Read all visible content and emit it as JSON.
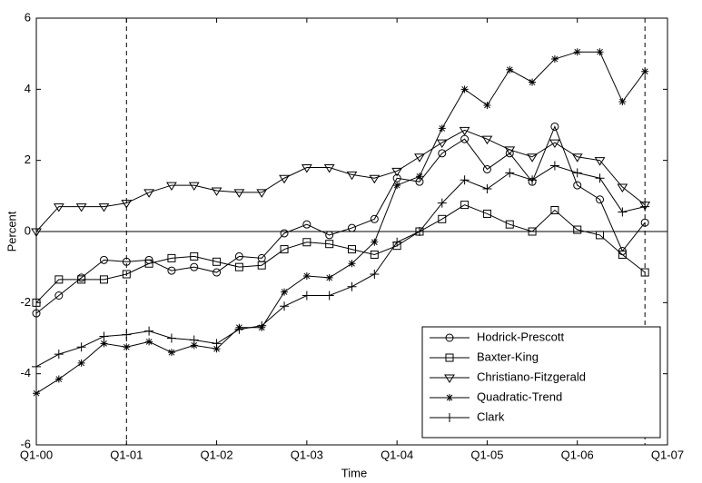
{
  "chart_data": {
    "type": "line",
    "x_label": "Time",
    "y_label": "Percent",
    "x": [
      0,
      1,
      2,
      3,
      4,
      5,
      6,
      7,
      8,
      9,
      10,
      11,
      12,
      13,
      14,
      15,
      16,
      17,
      18,
      19,
      20,
      21,
      22,
      23,
      24,
      25,
      26,
      27
    ],
    "xlim": [
      0,
      28
    ],
    "xticks": [
      {
        "value": 0,
        "label": "Q1-00"
      },
      {
        "value": 4,
        "label": "Q1-01"
      },
      {
        "value": 8,
        "label": "Q1-02"
      },
      {
        "value": 12,
        "label": "Q1-03"
      },
      {
        "value": 16,
        "label": "Q1-04"
      },
      {
        "value": 20,
        "label": "Q1-05"
      },
      {
        "value": 24,
        "label": "Q1-06"
      },
      {
        "value": 28,
        "label": "Q1-07"
      }
    ],
    "ylim": [
      -6,
      6
    ],
    "yticks": [
      -6,
      -4,
      -2,
      0,
      2,
      4,
      6
    ],
    "dashed_lines_x": [
      4,
      27
    ],
    "zero_line": true,
    "legend": "lower right",
    "series": [
      {
        "name": "Hodrick-Prescott",
        "color": "#000000",
        "marker": "circle",
        "values": [
          -2.3,
          -1.8,
          -1.3,
          -0.8,
          -0.85,
          -0.8,
          -1.1,
          -1.0,
          -1.15,
          -0.7,
          -0.75,
          -0.05,
          0.2,
          -0.1,
          0.1,
          0.35,
          1.5,
          1.4,
          2.2,
          2.6,
          1.75,
          2.2,
          1.4,
          2.95,
          1.3,
          0.9,
          -0.55,
          0.25
        ]
      },
      {
        "name": "Baxter-King",
        "color": "#000000",
        "marker": "square",
        "values": [
          -2.0,
          -1.35,
          -1.35,
          -1.35,
          -1.2,
          -0.9,
          -0.75,
          -0.7,
          -0.85,
          -1.0,
          -0.95,
          -0.5,
          -0.3,
          -0.35,
          -0.5,
          -0.65,
          -0.4,
          0.0,
          0.35,
          0.75,
          0.5,
          0.2,
          0.0,
          0.6,
          0.05,
          -0.1,
          -0.65,
          -1.15
        ]
      },
      {
        "name": "Christiano-Fitzgerald",
        "color": "#000000",
        "marker": "triangle-down",
        "values": [
          0.0,
          0.7,
          0.7,
          0.7,
          0.8,
          1.1,
          1.3,
          1.3,
          1.15,
          1.1,
          1.1,
          1.5,
          1.8,
          1.8,
          1.6,
          1.5,
          1.7,
          2.1,
          2.5,
          2.85,
          2.6,
          2.3,
          2.1,
          2.5,
          2.1,
          2.0,
          1.25,
          0.75
        ]
      },
      {
        "name": "Quadratic-Trend",
        "color": "#000000",
        "marker": "star",
        "values": [
          -4.55,
          -4.15,
          -3.7,
          -3.15,
          -3.25,
          -3.1,
          -3.4,
          -3.2,
          -3.3,
          -2.7,
          -2.7,
          -1.7,
          -1.25,
          -1.3,
          -0.9,
          -0.3,
          1.3,
          1.55,
          2.9,
          4.0,
          3.55,
          4.55,
          4.2,
          4.85,
          5.05,
          5.05,
          3.65,
          4.5
        ]
      },
      {
        "name": "Clark",
        "color": "#000000",
        "marker": "plus",
        "values": [
          -3.8,
          -3.45,
          -3.25,
          -2.95,
          -2.9,
          -2.8,
          -3.0,
          -3.05,
          -3.15,
          -2.75,
          -2.65,
          -2.1,
          -1.8,
          -1.8,
          -1.55,
          -1.2,
          -0.3,
          0.0,
          0.8,
          1.45,
          1.2,
          1.65,
          1.45,
          1.85,
          1.65,
          1.5,
          0.55,
          0.7
        ]
      }
    ]
  }
}
